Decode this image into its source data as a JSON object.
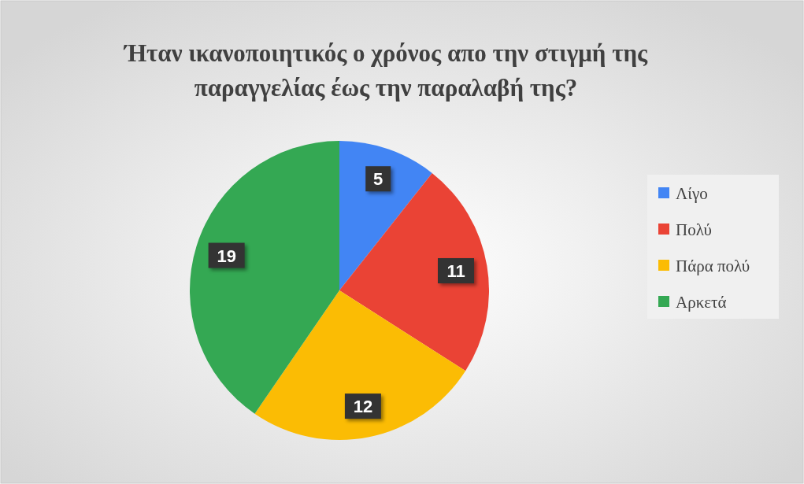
{
  "chart_data": {
    "type": "pie",
    "title": "Ήταν ικανοποιητικός ο χρόνος απο την στιγμή της παραγγελίας έως την παραλαβή της?",
    "categories": [
      "Λίγο",
      "Πολύ",
      "Πάρα πολύ",
      "Αρκετά"
    ],
    "values": [
      5,
      11,
      12,
      19
    ],
    "colors": [
      "#4285f4",
      "#ea4335",
      "#fbbc04",
      "#34a853"
    ],
    "data_labels": true,
    "legend": "right"
  }
}
